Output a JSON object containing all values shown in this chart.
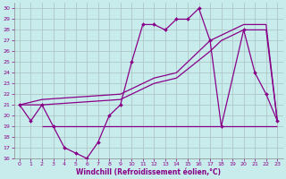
{
  "xlabel": "Windchill (Refroidissement éolien,°C)",
  "xlim": [
    -0.5,
    23.5
  ],
  "ylim": [
    16,
    30.5
  ],
  "xticks": [
    0,
    1,
    2,
    3,
    4,
    5,
    6,
    7,
    8,
    9,
    10,
    11,
    12,
    13,
    14,
    15,
    16,
    17,
    18,
    19,
    20,
    21,
    22,
    23
  ],
  "yticks": [
    16,
    17,
    18,
    19,
    20,
    21,
    22,
    23,
    24,
    25,
    26,
    27,
    28,
    29,
    30
  ],
  "bg_color": "#c8ecec",
  "line_color": "#880088",
  "grid_color": "#b0c8c8",
  "main_x": [
    0,
    1,
    2,
    3,
    4,
    5,
    6,
    7,
    8,
    9,
    10,
    11,
    12,
    13,
    14,
    15,
    16,
    17,
    18,
    20,
    21,
    22,
    23
  ],
  "main_y": [
    21,
    19.5,
    21,
    19,
    17,
    16.5,
    16,
    17.5,
    20,
    21,
    25,
    28.5,
    28.5,
    28,
    29,
    29,
    30,
    27,
    19,
    28,
    24,
    22,
    19.5
  ],
  "trend1_x": [
    0,
    2,
    9,
    11,
    12,
    14,
    17,
    18,
    20,
    22,
    23
  ],
  "trend1_y": [
    21,
    21.5,
    22,
    23,
    23.5,
    24,
    27,
    27.5,
    28.5,
    28.5,
    19.5
  ],
  "trend2_x": [
    0,
    2,
    9,
    11,
    12,
    14,
    17,
    18,
    20,
    22,
    23
  ],
  "trend2_y": [
    21,
    21,
    21.5,
    22.5,
    23,
    23.5,
    26,
    27,
    28,
    28,
    19.5
  ],
  "hline_y": 19,
  "hline_x_start": 2,
  "hline_x_end": 23
}
